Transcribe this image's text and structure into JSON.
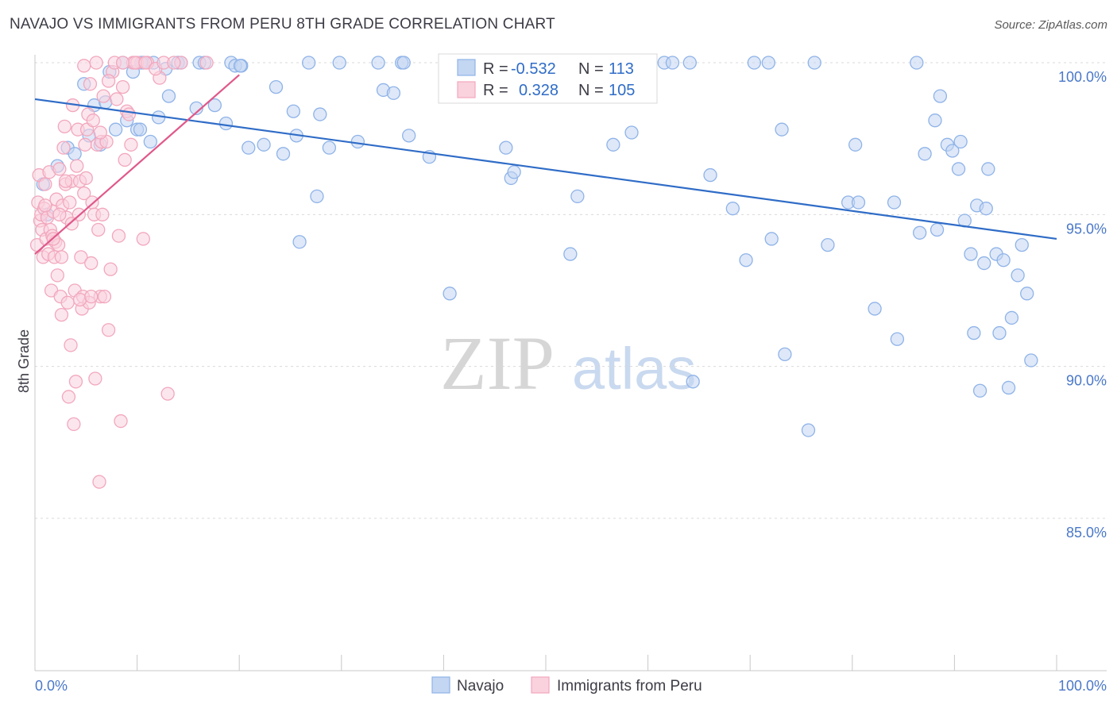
{
  "chart_data": {
    "type": "scatter",
    "title": "NAVAJO VS IMMIGRANTS FROM PERU 8TH GRADE CORRELATION CHART",
    "source": "Source: ZipAtlas.com",
    "xlabel": "",
    "ylabel": "8th Grade",
    "xlim": [
      0,
      100
    ],
    "ylim": [
      80.5,
      100.5
    ],
    "y_ticks": [
      {
        "value": 100,
        "label": "100.0%"
      },
      {
        "value": 95,
        "label": "95.0%"
      },
      {
        "value": 90,
        "label": "90.0%"
      },
      {
        "value": 85,
        "label": "85.0%"
      }
    ],
    "x_tick_labels": {
      "min": "0.0%",
      "max": "100.0%"
    },
    "watermark": {
      "part1": "ZIP",
      "part2": "atlas"
    },
    "legend": {
      "r_label": "R =",
      "n_label": "N =",
      "entries": [
        {
          "name": "Navajo",
          "r": "-0.532",
          "n": "113"
        },
        {
          "name": "Immigrants from Peru",
          "r": "0.328",
          "n": "105"
        }
      ]
    },
    "series": [
      {
        "name": "Navajo",
        "color": "#8fb3e8",
        "fill": "#c3d6f2",
        "line_color": "#2f6cc7",
        "trend": {
          "x": [
            0,
            100
          ],
          "y": [
            98.8,
            94.2
          ]
        },
        "points": [
          [
            0.8,
            96.0
          ],
          [
            1.2,
            95.0
          ],
          [
            2.2,
            96.6
          ],
          [
            3.2,
            97.2
          ],
          [
            3.9,
            97.0
          ],
          [
            4.8,
            99.3
          ],
          [
            5.3,
            97.6
          ],
          [
            5.8,
            98.6
          ],
          [
            6.4,
            97.3
          ],
          [
            6.9,
            98.7
          ],
          [
            7.3,
            99.7
          ],
          [
            7.9,
            97.8
          ],
          [
            8.6,
            100.0
          ],
          [
            9.0,
            98.1
          ],
          [
            9.6,
            99.7
          ],
          [
            10.0,
            97.8
          ],
          [
            10.3,
            97.8
          ],
          [
            10.6,
            100.0
          ],
          [
            11.3,
            97.4
          ],
          [
            11.6,
            100.0
          ],
          [
            12.1,
            98.2
          ],
          [
            12.8,
            99.8
          ],
          [
            13.1,
            98.9
          ],
          [
            14.0,
            100.0
          ],
          [
            14.3,
            100.0
          ],
          [
            15.8,
            98.5
          ],
          [
            16.1,
            100.0
          ],
          [
            16.6,
            100.0
          ],
          [
            17.6,
            98.6
          ],
          [
            18.7,
            98.0
          ],
          [
            19.2,
            100.0
          ],
          [
            19.6,
            99.9
          ],
          [
            20.2,
            99.9
          ],
          [
            20.9,
            97.2
          ],
          [
            22.4,
            97.3
          ],
          [
            23.6,
            99.2
          ],
          [
            24.3,
            97.0
          ],
          [
            25.3,
            98.4
          ],
          [
            25.6,
            97.6
          ],
          [
            25.9,
            94.1
          ],
          [
            26.8,
            100.0
          ],
          [
            27.6,
            95.6
          ],
          [
            27.9,
            98.3
          ],
          [
            28.8,
            97.2
          ],
          [
            29.8,
            100.0
          ],
          [
            31.6,
            97.4
          ],
          [
            33.6,
            100.0
          ],
          [
            34.1,
            99.1
          ],
          [
            35.1,
            99.0
          ],
          [
            35.9,
            100.0
          ],
          [
            36.1,
            100.0
          ],
          [
            36.6,
            97.6
          ],
          [
            38.6,
            96.9
          ],
          [
            40.6,
            92.4
          ],
          [
            46.1,
            97.2
          ],
          [
            46.6,
            96.2
          ],
          [
            46.9,
            96.4
          ],
          [
            52.4,
            93.7
          ],
          [
            53.1,
            95.6
          ],
          [
            56.1,
            100.0
          ],
          [
            56.2,
            100.0
          ],
          [
            56.6,
            97.3
          ],
          [
            58.4,
            97.7
          ],
          [
            61.6,
            100.0
          ],
          [
            62.4,
            100.0
          ],
          [
            64.1,
            100.0
          ],
          [
            64.4,
            89.5
          ],
          [
            66.1,
            96.3
          ],
          [
            68.3,
            95.2
          ],
          [
            69.6,
            93.5
          ],
          [
            70.4,
            100.0
          ],
          [
            71.8,
            100.0
          ],
          [
            72.1,
            94.2
          ],
          [
            73.1,
            97.8
          ],
          [
            73.4,
            90.4
          ],
          [
            75.7,
            87.9
          ],
          [
            76.3,
            100.0
          ],
          [
            77.6,
            94.0
          ],
          [
            79.6,
            95.4
          ],
          [
            80.3,
            97.3
          ],
          [
            80.6,
            95.4
          ],
          [
            82.2,
            91.9
          ],
          [
            84.1,
            95.4
          ],
          [
            84.4,
            90.9
          ],
          [
            86.3,
            100.0
          ],
          [
            86.6,
            94.4
          ],
          [
            87.1,
            97.0
          ],
          [
            88.1,
            98.1
          ],
          [
            88.3,
            94.5
          ],
          [
            88.6,
            98.9
          ],
          [
            89.3,
            97.3
          ],
          [
            89.8,
            97.1
          ],
          [
            90.4,
            96.5
          ],
          [
            90.6,
            97.4
          ],
          [
            91.0,
            94.8
          ],
          [
            91.6,
            93.7
          ],
          [
            91.9,
            91.1
          ],
          [
            92.2,
            95.3
          ],
          [
            92.5,
            89.2
          ],
          [
            92.9,
            93.4
          ],
          [
            93.1,
            95.2
          ],
          [
            93.3,
            96.5
          ],
          [
            94.1,
            93.7
          ],
          [
            94.4,
            91.1
          ],
          [
            94.8,
            93.5
          ],
          [
            95.3,
            89.3
          ],
          [
            95.6,
            91.6
          ],
          [
            96.2,
            93.0
          ],
          [
            96.6,
            94.0
          ],
          [
            97.1,
            92.4
          ],
          [
            97.5,
            90.2
          ],
          [
            10.4,
            100.0
          ],
          [
            20.1,
            99.9
          ]
        ]
      },
      {
        "name": "Immigrants from Peru",
        "color": "#f2a7bd",
        "fill": "#f9d2de",
        "line_color": "#e0588a",
        "trend": {
          "x": [
            0,
            20
          ],
          "y": [
            93.7,
            99.6
          ]
        },
        "points": [
          [
            0.2,
            94.0
          ],
          [
            0.3,
            95.4
          ],
          [
            0.4,
            96.3
          ],
          [
            0.5,
            94.8
          ],
          [
            0.6,
            95.0
          ],
          [
            0.7,
            94.5
          ],
          [
            0.8,
            93.6
          ],
          [
            0.9,
            95.2
          ],
          [
            1.0,
            96.0
          ],
          [
            1.1,
            94.2
          ],
          [
            1.2,
            94.9
          ],
          [
            1.3,
            93.7
          ],
          [
            1.4,
            96.4
          ],
          [
            1.5,
            94.5
          ],
          [
            1.6,
            92.5
          ],
          [
            1.7,
            94.3
          ],
          [
            1.8,
            95.1
          ],
          [
            1.9,
            93.6
          ],
          [
            2.0,
            94.1
          ],
          [
            2.1,
            95.5
          ],
          [
            2.2,
            93.0
          ],
          [
            2.3,
            94.0
          ],
          [
            2.4,
            96.5
          ],
          [
            2.5,
            92.3
          ],
          [
            2.6,
            91.7
          ],
          [
            2.7,
            95.3
          ],
          [
            2.8,
            97.2
          ],
          [
            2.9,
            97.9
          ],
          [
            3.0,
            96.0
          ],
          [
            3.1,
            94.9
          ],
          [
            3.2,
            92.1
          ],
          [
            3.3,
            89.0
          ],
          [
            3.4,
            95.4
          ],
          [
            3.5,
            90.7
          ],
          [
            3.6,
            96.1
          ],
          [
            3.7,
            98.6
          ],
          [
            3.8,
            88.1
          ],
          [
            3.9,
            92.5
          ],
          [
            4.0,
            89.5
          ],
          [
            4.1,
            96.6
          ],
          [
            4.2,
            97.8
          ],
          [
            4.3,
            95.0
          ],
          [
            4.4,
            96.1
          ],
          [
            4.5,
            93.6
          ],
          [
            4.6,
            91.9
          ],
          [
            4.7,
            92.3
          ],
          [
            4.8,
            95.7
          ],
          [
            4.9,
            97.3
          ],
          [
            5.0,
            96.2
          ],
          [
            5.1,
            97.8
          ],
          [
            5.2,
            98.3
          ],
          [
            5.3,
            92.1
          ],
          [
            5.4,
            99.3
          ],
          [
            5.5,
            93.4
          ],
          [
            5.6,
            95.4
          ],
          [
            5.7,
            98.1
          ],
          [
            5.8,
            95.0
          ],
          [
            5.9,
            89.6
          ],
          [
            6.0,
            100.0
          ],
          [
            6.1,
            97.3
          ],
          [
            6.2,
            94.5
          ],
          [
            6.3,
            86.2
          ],
          [
            6.4,
            92.3
          ],
          [
            6.5,
            97.4
          ],
          [
            6.6,
            95.0
          ],
          [
            6.7,
            98.9
          ],
          [
            6.8,
            92.3
          ],
          [
            7.0,
            97.4
          ],
          [
            7.2,
            91.2
          ],
          [
            7.4,
            93.2
          ],
          [
            7.6,
            99.7
          ],
          [
            7.8,
            100.0
          ],
          [
            8.0,
            98.8
          ],
          [
            8.2,
            94.3
          ],
          [
            8.4,
            88.2
          ],
          [
            8.6,
            99.2
          ],
          [
            8.8,
            96.8
          ],
          [
            9.0,
            98.4
          ],
          [
            9.2,
            98.3
          ],
          [
            9.4,
            97.3
          ],
          [
            9.6,
            100.0
          ],
          [
            10.0,
            100.0
          ],
          [
            10.6,
            94.2
          ],
          [
            11.0,
            100.0
          ],
          [
            12.2,
            99.5
          ],
          [
            13.0,
            89.1
          ],
          [
            14.3,
            100.0
          ],
          [
            16.8,
            100.0
          ],
          [
            1.0,
            95.3
          ],
          [
            1.8,
            94.2
          ],
          [
            2.4,
            95.0
          ],
          [
            3.0,
            96.1
          ],
          [
            3.6,
            94.7
          ],
          [
            4.4,
            92.2
          ],
          [
            4.8,
            99.9
          ],
          [
            5.5,
            92.3
          ],
          [
            6.4,
            97.7
          ],
          [
            7.2,
            99.4
          ],
          [
            8.6,
            100.0
          ],
          [
            9.8,
            100.0
          ],
          [
            10.8,
            100.0
          ],
          [
            11.8,
            99.8
          ],
          [
            12.6,
            100.0
          ],
          [
            13.6,
            100.0
          ],
          [
            2.6,
            93.6
          ]
        ]
      }
    ]
  }
}
